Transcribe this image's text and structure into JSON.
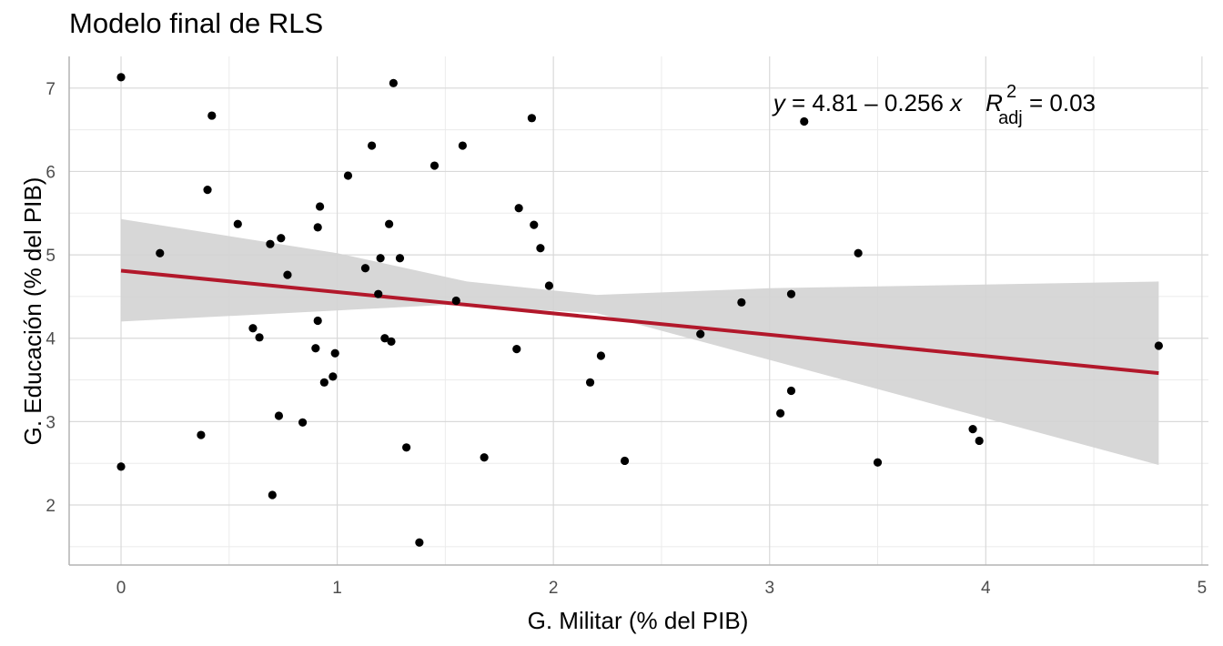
{
  "chart_data": {
    "type": "scatter",
    "title": "Modelo final de RLS",
    "xlabel": "G. Militar (% del PIB)",
    "ylabel": "G. Educación (% del PIB)",
    "xlim": [
      -0.24,
      5.03
    ],
    "ylim": [
      1.28,
      7.38
    ],
    "x_ticks": [
      0,
      1,
      2,
      3,
      4,
      5
    ],
    "y_ticks": [
      2,
      3,
      4,
      5,
      6,
      7
    ],
    "grid": true,
    "colors": {
      "points": "#000000",
      "fit_line": "#b2182b",
      "ribbon": "#d3d3d3",
      "grid_major": "#d9d9d9",
      "grid_minor": "#ebebeb",
      "axis": "#b3b3b3"
    },
    "regression": {
      "intercept": 4.81,
      "slope": -0.256,
      "x_range": [
        0,
        4.8
      ],
      "ci_lower": [
        [
          0,
          4.2
        ],
        [
          1.5,
          4.4
        ],
        [
          2.2,
          4.3
        ],
        [
          4.8,
          2.48
        ]
      ],
      "ci_upper": [
        [
          0,
          5.43
        ],
        [
          1,
          5.02
        ],
        [
          1.6,
          4.68
        ],
        [
          2.2,
          4.52
        ],
        [
          3,
          4.6
        ],
        [
          4.8,
          4.68
        ]
      ]
    },
    "equation": {
      "y_var": "y",
      "eq_body": " = 4.81 – 0.256 ",
      "x_var": "x",
      "r_letter": "R",
      "r_sup": "2",
      "r_sub": "adj",
      "r_value": " = 0.03"
    },
    "points": [
      [
        0,
        7.13
      ],
      [
        0,
        2.46
      ],
      [
        0.18,
        5.02
      ],
      [
        0.37,
        2.84
      ],
      [
        0.4,
        5.78
      ],
      [
        0.42,
        6.67
      ],
      [
        0.54,
        5.37
      ],
      [
        0.61,
        4.12
      ],
      [
        0.64,
        4.01
      ],
      [
        0.69,
        5.13
      ],
      [
        0.7,
        2.12
      ],
      [
        0.73,
        3.07
      ],
      [
        0.74,
        5.2
      ],
      [
        0.77,
        4.76
      ],
      [
        0.84,
        2.99
      ],
      [
        0.9,
        3.88
      ],
      [
        0.91,
        5.33
      ],
      [
        0.91,
        4.21
      ],
      [
        0.92,
        5.58
      ],
      [
        0.94,
        3.47
      ],
      [
        0.98,
        3.54
      ],
      [
        0.99,
        3.82
      ],
      [
        1.05,
        5.95
      ],
      [
        1.13,
        4.84
      ],
      [
        1.16,
        6.31
      ],
      [
        1.19,
        4.53
      ],
      [
        1.2,
        4.96
      ],
      [
        1.22,
        4
      ],
      [
        1.24,
        5.37
      ],
      [
        1.25,
        3.96
      ],
      [
        1.26,
        7.06
      ],
      [
        1.29,
        4.96
      ],
      [
        1.32,
        2.69
      ],
      [
        1.38,
        1.55
      ],
      [
        1.45,
        6.07
      ],
      [
        1.55,
        4.45
      ],
      [
        1.58,
        6.31
      ],
      [
        1.68,
        2.57
      ],
      [
        1.83,
        3.87
      ],
      [
        1.84,
        5.56
      ],
      [
        1.9,
        6.64
      ],
      [
        1.91,
        5.36
      ],
      [
        1.94,
        5.08
      ],
      [
        1.98,
        4.63
      ],
      [
        2.17,
        3.47
      ],
      [
        2.22,
        3.79
      ],
      [
        2.33,
        2.53
      ],
      [
        2.68,
        4.05
      ],
      [
        2.87,
        4.43
      ],
      [
        3.05,
        3.1
      ],
      [
        3.1,
        3.37
      ],
      [
        3.1,
        4.53
      ],
      [
        3.16,
        6.6
      ],
      [
        3.41,
        5.02
      ],
      [
        3.5,
        2.51
      ],
      [
        3.94,
        2.91
      ],
      [
        3.97,
        2.77
      ],
      [
        4.8,
        3.91
      ]
    ]
  }
}
